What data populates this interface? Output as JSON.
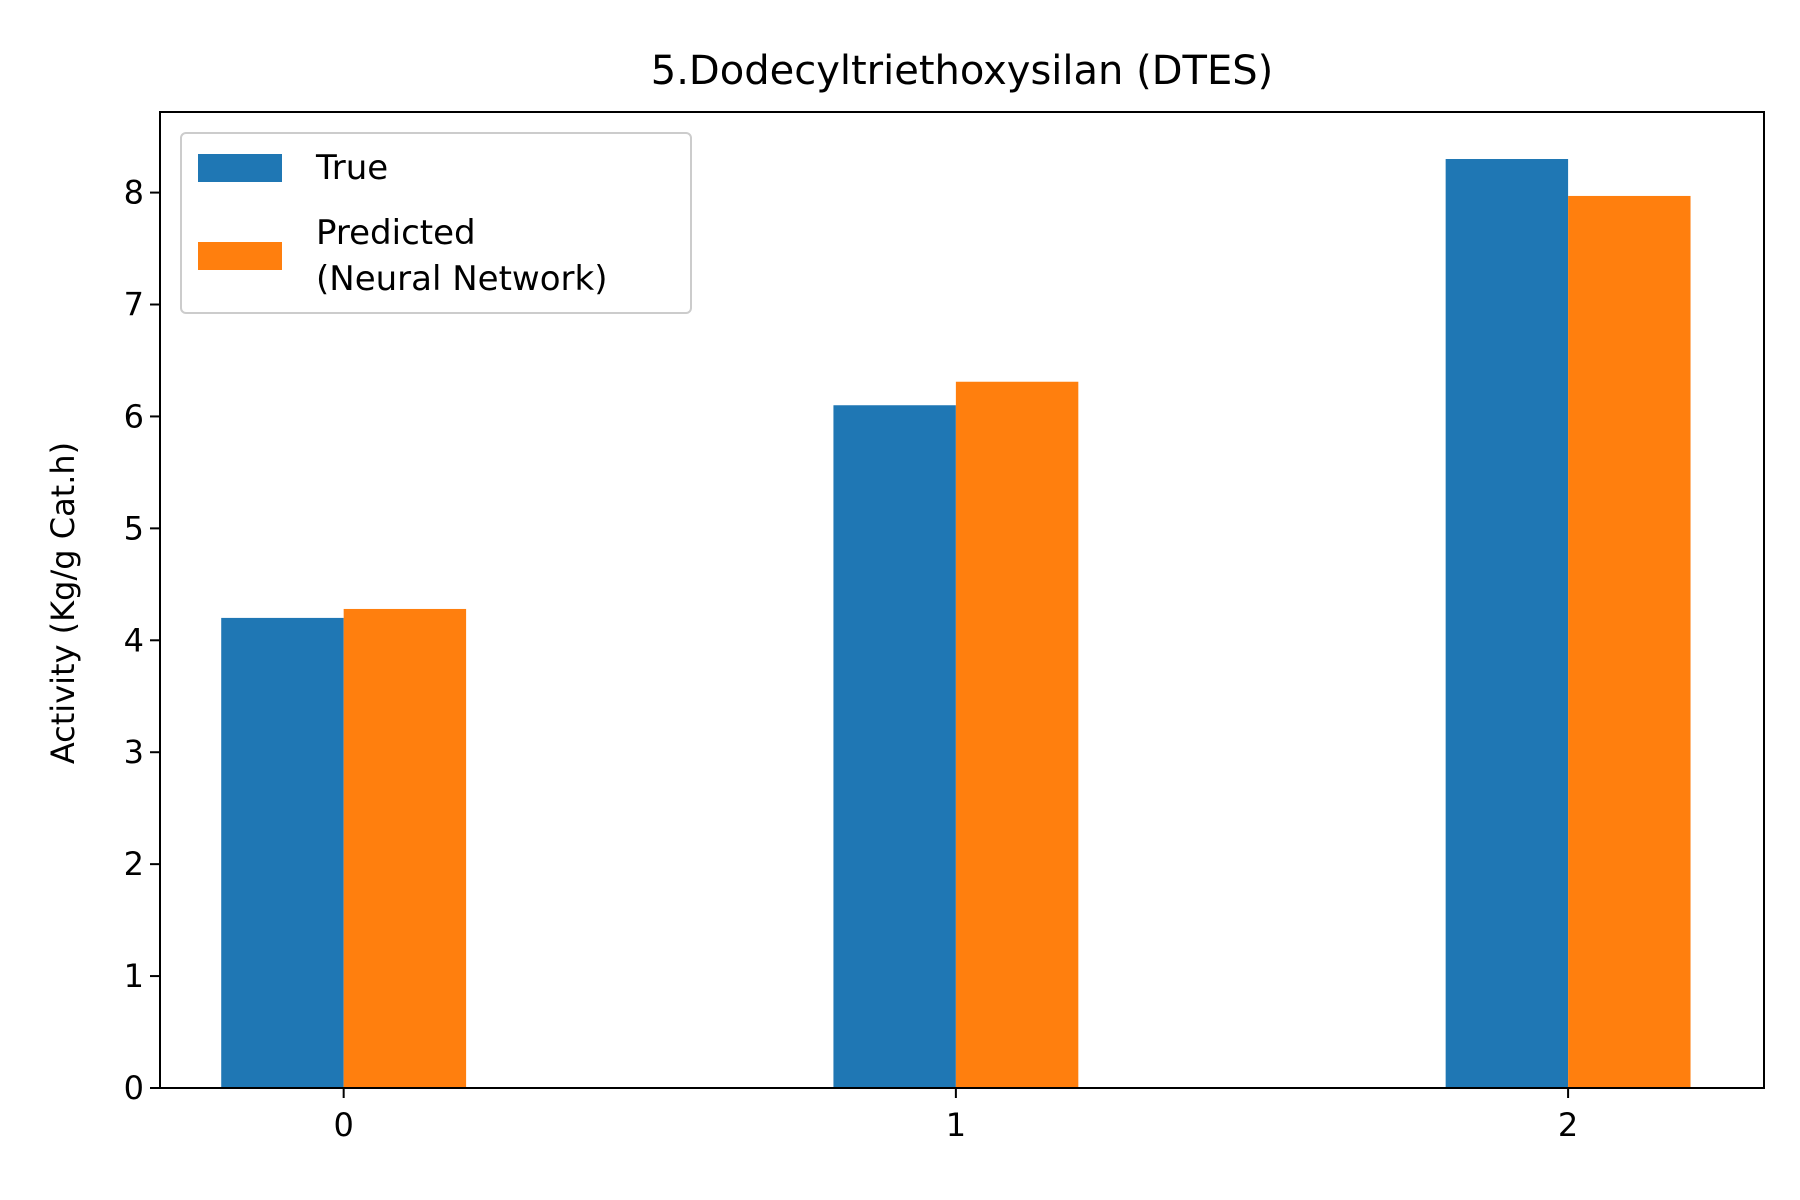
{
  "chart_data": {
    "type": "bar",
    "title": "5.Dodecyltriethoxysilan (DTES)",
    "xlabel": "",
    "ylabel": "Activity (Kg/g Cat.h)",
    "categories": [
      "0",
      "1",
      "2"
    ],
    "series": [
      {
        "name": "True",
        "color": "#1f77b4",
        "values": [
          4.2,
          6.1,
          8.3
        ]
      },
      {
        "name": "Predicted\n(Neural Network)",
        "color": "#ff7f0e",
        "values": [
          4.28,
          6.31,
          7.97
        ]
      }
    ],
    "xlim": [
      -0.3,
      2.32
    ],
    "ylim": [
      0,
      8.72
    ],
    "yticks": [
      0,
      1,
      2,
      3,
      4,
      5,
      6,
      7,
      8
    ],
    "grid": false,
    "legend_position": "top-left"
  }
}
